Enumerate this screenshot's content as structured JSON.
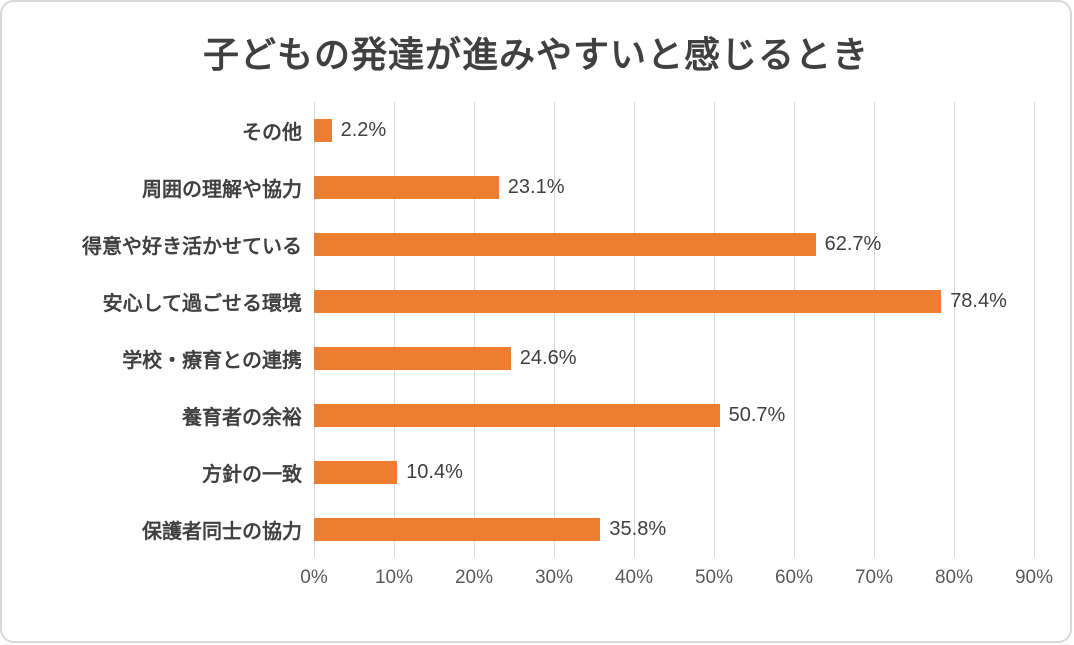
{
  "chart_data": {
    "type": "bar",
    "orientation": "horizontal",
    "title": "子どもの発達が進みやすいと感じるとき",
    "categories": [
      "その他",
      "周囲の理解や協力",
      "得意や好き活かせている",
      "安心して過ごせる環境",
      "学校・療育との連携",
      "養育者の余裕",
      "方針の一致",
      "保護者同士の協力"
    ],
    "values": [
      2.2,
      23.1,
      62.7,
      78.4,
      24.6,
      50.7,
      10.4,
      35.8
    ],
    "value_labels": [
      "2.2%",
      "23.1%",
      "62.7%",
      "78.4%",
      "24.6%",
      "50.7%",
      "10.4%",
      "35.8%"
    ],
    "x_ticks": [
      "0%",
      "10%",
      "20%",
      "30%",
      "40%",
      "50%",
      "60%",
      "70%",
      "80%",
      "90%"
    ],
    "xlim": [
      0,
      90
    ],
    "xlabel": "",
    "ylabel": "",
    "grid": true,
    "legend": "none",
    "bar_color": "#ED7D31",
    "gridline_color": "#D9D9D9",
    "title_color": "#404040",
    "label_color": "#404040",
    "tick_color": "#595959"
  }
}
